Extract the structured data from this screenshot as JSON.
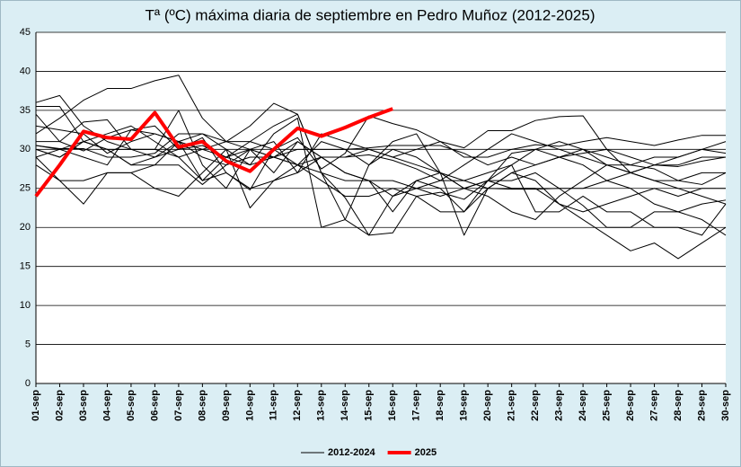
{
  "chart_data": {
    "type": "line",
    "title": "Tª (ºC) máxima diaria de septiembre en Pedro Muñoz (2012-2025)",
    "categories": [
      "01-sep",
      "02-sep",
      "03-sep",
      "04-sep",
      "05-sep",
      "06-sep",
      "07-sep",
      "08-sep",
      "09-sep",
      "10-sep",
      "11-sep",
      "12-sep",
      "13-sep",
      "14-sep",
      "15-sep",
      "16-sep",
      "17-sep",
      "18-sep",
      "19-sep",
      "20-sep",
      "21-sep",
      "22-sep",
      "23-sep",
      "24-sep",
      "25-sep",
      "26-sep",
      "27-sep",
      "28-sep",
      "29-sep",
      "30-sep"
    ],
    "ylim": [
      0,
      45
    ],
    "yticks": [
      0,
      5,
      10,
      15,
      20,
      25,
      30,
      35,
      40,
      45
    ],
    "grid": true,
    "legend": "bottom",
    "series": [
      {
        "name": "2012-2024",
        "color": "#000000",
        "values": [
          [
            36,
            36.9,
            33,
            31,
            30,
            30,
            35,
            28,
            25,
            30,
            31,
            27,
            32,
            31,
            30,
            29,
            28,
            27,
            26,
            25,
            27,
            28,
            29,
            30,
            28,
            27,
            26,
            25,
            24,
            23
          ],
          [
            35.5,
            35.5,
            31,
            32,
            33,
            31,
            29,
            26,
            29,
            31,
            33,
            34.5,
            27,
            21,
            19,
            24,
            25,
            26,
            28,
            30,
            32,
            31,
            30,
            29,
            28,
            27,
            26,
            26,
            27,
            27
          ],
          [
            30,
            29,
            31,
            30,
            28,
            29,
            31,
            32,
            30,
            28,
            32,
            34,
            20,
            21,
            28,
            30,
            29,
            27,
            25,
            24,
            22,
            21,
            24,
            26,
            28,
            28,
            29,
            29,
            30,
            29.5
          ],
          [
            29,
            26,
            23,
            27,
            27,
            25,
            24,
            27,
            30,
            22.5,
            26,
            28,
            27,
            23.8,
            19,
            19.3,
            24,
            24.5,
            23.6,
            26,
            29.5,
            30,
            29,
            28,
            26,
            25,
            23,
            22,
            23,
            23.5
          ],
          [
            32,
            34,
            36.3,
            37.8,
            37.8,
            38.8,
            39.5,
            34,
            31,
            31,
            30,
            28,
            26,
            24,
            24,
            25,
            24,
            22,
            22,
            25,
            27,
            26,
            23,
            21,
            19,
            17,
            18,
            16,
            18,
            20
          ],
          [
            30.5,
            30,
            31,
            30,
            30,
            30,
            29,
            30,
            31,
            33,
            35.9,
            34.5,
            27,
            26,
            26,
            26,
            25,
            24,
            25,
            26,
            25,
            25,
            23,
            22,
            23,
            24,
            25,
            24,
            25,
            25
          ],
          [
            34.5,
            31,
            33.5,
            33.8,
            30,
            29,
            30,
            31.5,
            27,
            24.8,
            30,
            31.5,
            27.5,
            29.5,
            34.3,
            33.3,
            32.5,
            31,
            30.2,
            32.4,
            32.4,
            33.7,
            34.2,
            34.3,
            30,
            27,
            28,
            29,
            30,
            31
          ],
          [
            29,
            30,
            29,
            28,
            32.5,
            32,
            31,
            29,
            28,
            29,
            29,
            28,
            29,
            27,
            26,
            24,
            26,
            27,
            25,
            26,
            26,
            27,
            25,
            25,
            26,
            27,
            28,
            28,
            29,
            29
          ],
          [
            30,
            29,
            31,
            30,
            28,
            28,
            28,
            25.5,
            28,
            30,
            29,
            28,
            31,
            30,
            28,
            31,
            32,
            27,
            19,
            25,
            24.9,
            24.9,
            25,
            22.8,
            20,
            20,
            22,
            22,
            21,
            19
          ],
          [
            33,
            32.5,
            32,
            29.5,
            31,
            32,
            31,
            30,
            29,
            30,
            27,
            31,
            29,
            29,
            30,
            29,
            30,
            31,
            29,
            29,
            30,
            30.6,
            30.4,
            31,
            31.5,
            31,
            30.5,
            31.2,
            31.8,
            31.8
          ],
          [
            31,
            31,
            29.8,
            31.5,
            32.5,
            33,
            30,
            30.5,
            29,
            28,
            29,
            31,
            29,
            29,
            29.3,
            28.6,
            27.5,
            26,
            26,
            27,
            28,
            30,
            31,
            30,
            29,
            28,
            27.5,
            26,
            25.5,
            27
          ],
          [
            30.5,
            30.1,
            30.1,
            29,
            29,
            29.5,
            32,
            32,
            31,
            30,
            29,
            30,
            30,
            30,
            30.2,
            30.5,
            30.5,
            30.5,
            29.5,
            28,
            29,
            28,
            29,
            29.5,
            30,
            29,
            28,
            27.8,
            28.5,
            29
          ],
          [
            28,
            26,
            26,
            27,
            27,
            28,
            31,
            26,
            27,
            25,
            26,
            27,
            29,
            27,
            26,
            22,
            26,
            25,
            22,
            26,
            28,
            22,
            22,
            24,
            22,
            22,
            20,
            20,
            19,
            23
          ]
        ]
      },
      {
        "name": "2025",
        "color": "#ff0000",
        "values": [
          24,
          28,
          32.3,
          31.5,
          31.3,
          34.7,
          30.3,
          31,
          28.5,
          27.2,
          30,
          32.7,
          31.7,
          32.8,
          34.1,
          35.2,
          null,
          null,
          null,
          null,
          null,
          null,
          null,
          null,
          null,
          null,
          null,
          null,
          null,
          null
        ]
      }
    ]
  }
}
